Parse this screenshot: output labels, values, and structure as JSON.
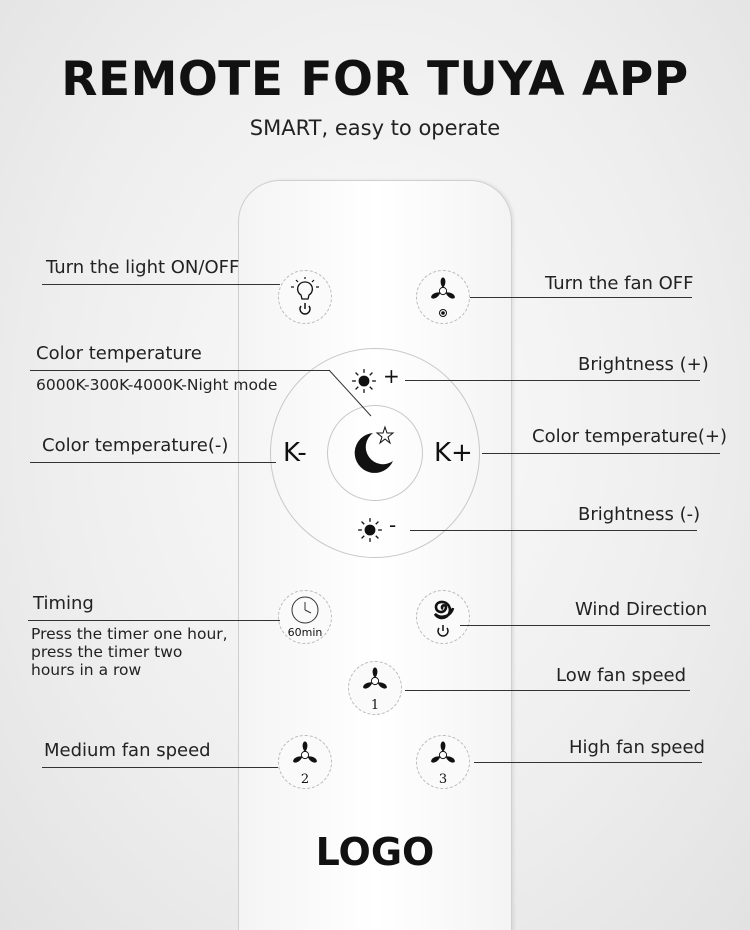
{
  "header": {
    "title": "REMOTE FOR TUYA APP",
    "subtitle": "SMART, easy to operate"
  },
  "labels": {
    "light_onoff": "Turn the light ON/OFF",
    "fan_off": "Turn the fan OFF",
    "color_temp": "Color temperature",
    "color_temp_modes": "6000K-300K-4000K-Night mode",
    "brightness_plus": "Brightness (+)",
    "color_temp_minus": "Color temperature(-)",
    "color_temp_plus": "Color temperature(+)",
    "brightness_minus": "Brightness (-)",
    "timing": "Timing",
    "timing_desc": [
      "Press the timer one hour,",
      "press the timer two",
      "hours in a row"
    ],
    "wind_direction": "Wind Direction",
    "low_fan": "Low fan speed",
    "medium_fan": "Medium fan speed",
    "high_fan": "High fan speed"
  },
  "remote": {
    "k_minus": "K-",
    "k_plus": "K+",
    "plus": "+",
    "minus": "-",
    "timer_label": "60min",
    "speed1": "1",
    "speed2": "2",
    "speed3": "3",
    "logo": "LOGO"
  },
  "icons": [
    "bulb-power-icon",
    "fan-off-icon",
    "sun-icon",
    "moon-star-icon",
    "clock-icon",
    "swirl-power-icon",
    "fan-icon"
  ]
}
